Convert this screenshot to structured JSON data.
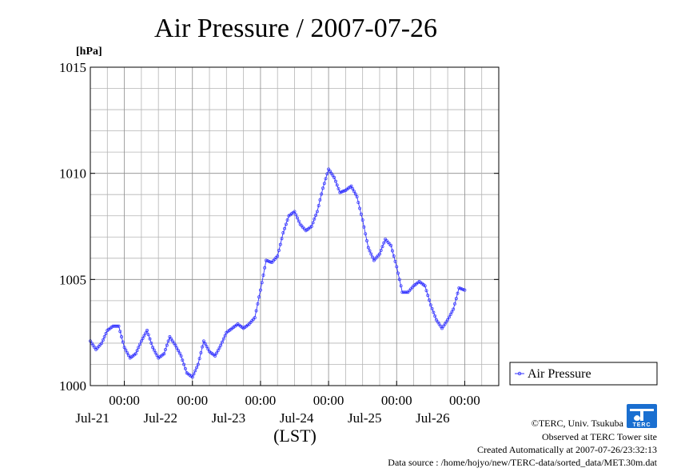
{
  "chart_data": {
    "type": "line",
    "title": "Air Pressure / 2007-07-26",
    "unit_label": "[hPa]",
    "xlabel": "(LST)",
    "ylabel": "",
    "ylim": [
      1000,
      1015
    ],
    "y_ticks": [
      1000,
      1005,
      1010,
      1015
    ],
    "y_tick_labels": [
      "1000",
      "1005",
      "1010",
      "1015"
    ],
    "y_minor_step": 1,
    "xlim": [
      "2007-07-20T12:00",
      "2007-07-26T12:00"
    ],
    "x_ticks": [
      {
        "date": "2007-07-21T00:00",
        "time_label": "00:00",
        "date_label": "Jul-21"
      },
      {
        "date": "2007-07-22T00:00",
        "time_label": "00:00",
        "date_label": "Jul-22"
      },
      {
        "date": "2007-07-23T00:00",
        "time_label": "00:00",
        "date_label": "Jul-23"
      },
      {
        "date": "2007-07-24T00:00",
        "time_label": "00:00",
        "date_label": "Jul-24"
      },
      {
        "date": "2007-07-25T00:00",
        "time_label": "00:00",
        "date_label": "Jul-25"
      },
      {
        "date": "2007-07-26T00:00",
        "time_label": "00:00",
        "date_label": "Jul-26"
      }
    ],
    "x_minor_step_hours": 6,
    "grid": true,
    "legend_placement": "right",
    "series": [
      {
        "name": "Air Pressure",
        "color": "#3333ff",
        "marker": "circle",
        "points": [
          [
            "2007-07-20T12:00",
            1002.1
          ],
          [
            "2007-07-20T14:00",
            1001.7
          ],
          [
            "2007-07-20T16:00",
            1002.0
          ],
          [
            "2007-07-20T18:00",
            1002.6
          ],
          [
            "2007-07-20T20:00",
            1002.8
          ],
          [
            "2007-07-20T22:00",
            1002.8
          ],
          [
            "2007-07-21T00:00",
            1001.8
          ],
          [
            "2007-07-21T02:00",
            1001.3
          ],
          [
            "2007-07-21T04:00",
            1001.5
          ],
          [
            "2007-07-21T06:00",
            1002.1
          ],
          [
            "2007-07-21T08:00",
            1002.6
          ],
          [
            "2007-07-21T10:00",
            1001.8
          ],
          [
            "2007-07-21T12:00",
            1001.3
          ],
          [
            "2007-07-21T14:00",
            1001.5
          ],
          [
            "2007-07-21T16:00",
            1002.3
          ],
          [
            "2007-07-21T18:00",
            1001.9
          ],
          [
            "2007-07-21T20:00",
            1001.4
          ],
          [
            "2007-07-21T22:00",
            1000.6
          ],
          [
            "2007-07-22T00:00",
            1000.4
          ],
          [
            "2007-07-22T02:00",
            1001.0
          ],
          [
            "2007-07-22T04:00",
            1002.1
          ],
          [
            "2007-07-22T06:00",
            1001.6
          ],
          [
            "2007-07-22T08:00",
            1001.4
          ],
          [
            "2007-07-22T10:00",
            1001.9
          ],
          [
            "2007-07-22T12:00",
            1002.5
          ],
          [
            "2007-07-22T14:00",
            1002.7
          ],
          [
            "2007-07-22T16:00",
            1002.9
          ],
          [
            "2007-07-22T18:00",
            1002.7
          ],
          [
            "2007-07-22T20:00",
            1002.9
          ],
          [
            "2007-07-22T22:00",
            1003.2
          ],
          [
            "2007-07-23T00:00",
            1004.5
          ],
          [
            "2007-07-23T02:00",
            1005.9
          ],
          [
            "2007-07-23T04:00",
            1005.8
          ],
          [
            "2007-07-23T06:00",
            1006.1
          ],
          [
            "2007-07-23T08:00",
            1007.2
          ],
          [
            "2007-07-23T10:00",
            1008.0
          ],
          [
            "2007-07-23T12:00",
            1008.2
          ],
          [
            "2007-07-23T14:00",
            1007.6
          ],
          [
            "2007-07-23T16:00",
            1007.3
          ],
          [
            "2007-07-23T18:00",
            1007.5
          ],
          [
            "2007-07-23T20:00",
            1008.2
          ],
          [
            "2007-07-23T22:00",
            1009.3
          ],
          [
            "2007-07-24T00:00",
            1010.2
          ],
          [
            "2007-07-24T02:00",
            1009.8
          ],
          [
            "2007-07-24T04:00",
            1009.1
          ],
          [
            "2007-07-24T06:00",
            1009.2
          ],
          [
            "2007-07-24T08:00",
            1009.4
          ],
          [
            "2007-07-24T10:00",
            1008.9
          ],
          [
            "2007-07-24T12:00",
            1007.8
          ],
          [
            "2007-07-24T14:00",
            1006.5
          ],
          [
            "2007-07-24T16:00",
            1005.9
          ],
          [
            "2007-07-24T18:00",
            1006.2
          ],
          [
            "2007-07-24T20:00",
            1006.9
          ],
          [
            "2007-07-24T22:00",
            1006.6
          ],
          [
            "2007-07-25T00:00",
            1005.6
          ],
          [
            "2007-07-25T02:00",
            1004.4
          ],
          [
            "2007-07-25T04:00",
            1004.4
          ],
          [
            "2007-07-25T06:00",
            1004.7
          ],
          [
            "2007-07-25T08:00",
            1004.9
          ],
          [
            "2007-07-25T10:00",
            1004.7
          ],
          [
            "2007-07-25T12:00",
            1003.8
          ],
          [
            "2007-07-25T14:00",
            1003.1
          ],
          [
            "2007-07-25T16:00",
            1002.7
          ],
          [
            "2007-07-25T18:00",
            1003.1
          ],
          [
            "2007-07-25T20:00",
            1003.6
          ],
          [
            "2007-07-25T22:00",
            1004.6
          ],
          [
            "2007-07-26T00:00",
            1004.5
          ]
        ]
      }
    ]
  },
  "logo": {
    "text": "TERC",
    "color": "#1a6fd0"
  },
  "footer": {
    "copyright": "©TERC, Univ. Tsukuba",
    "observed": "Observed at TERC Tower site",
    "created": "Created Automatically at 2007-07-26/23:32:13",
    "source": "Data source : /home/hojyo/new/TERC-data/sorted_data/MET.30m.dat"
  }
}
